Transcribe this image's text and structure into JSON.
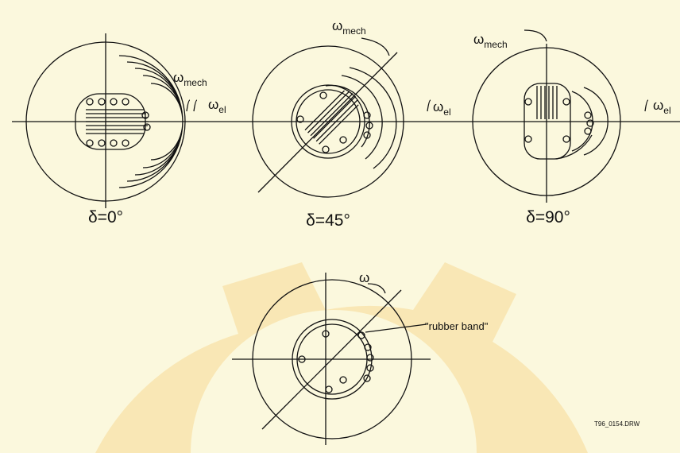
{
  "panels": [
    {
      "delta": "δ=0°",
      "mech": [
        "ω",
        "mech"
      ],
      "el": [
        "ω",
        "el"
      ]
    },
    {
      "delta": "δ=45°",
      "mech": [
        "ω",
        "mech"
      ],
      "el": [
        "ω",
        "el"
      ]
    },
    {
      "delta": "δ=90°",
      "mech": [
        "ω",
        "mech"
      ],
      "el": [
        "ω",
        "el"
      ]
    }
  ],
  "bottom": {
    "omega": "ω",
    "annotation": "\"rubber band\""
  },
  "drawing_id": "T96_0154.DRW"
}
